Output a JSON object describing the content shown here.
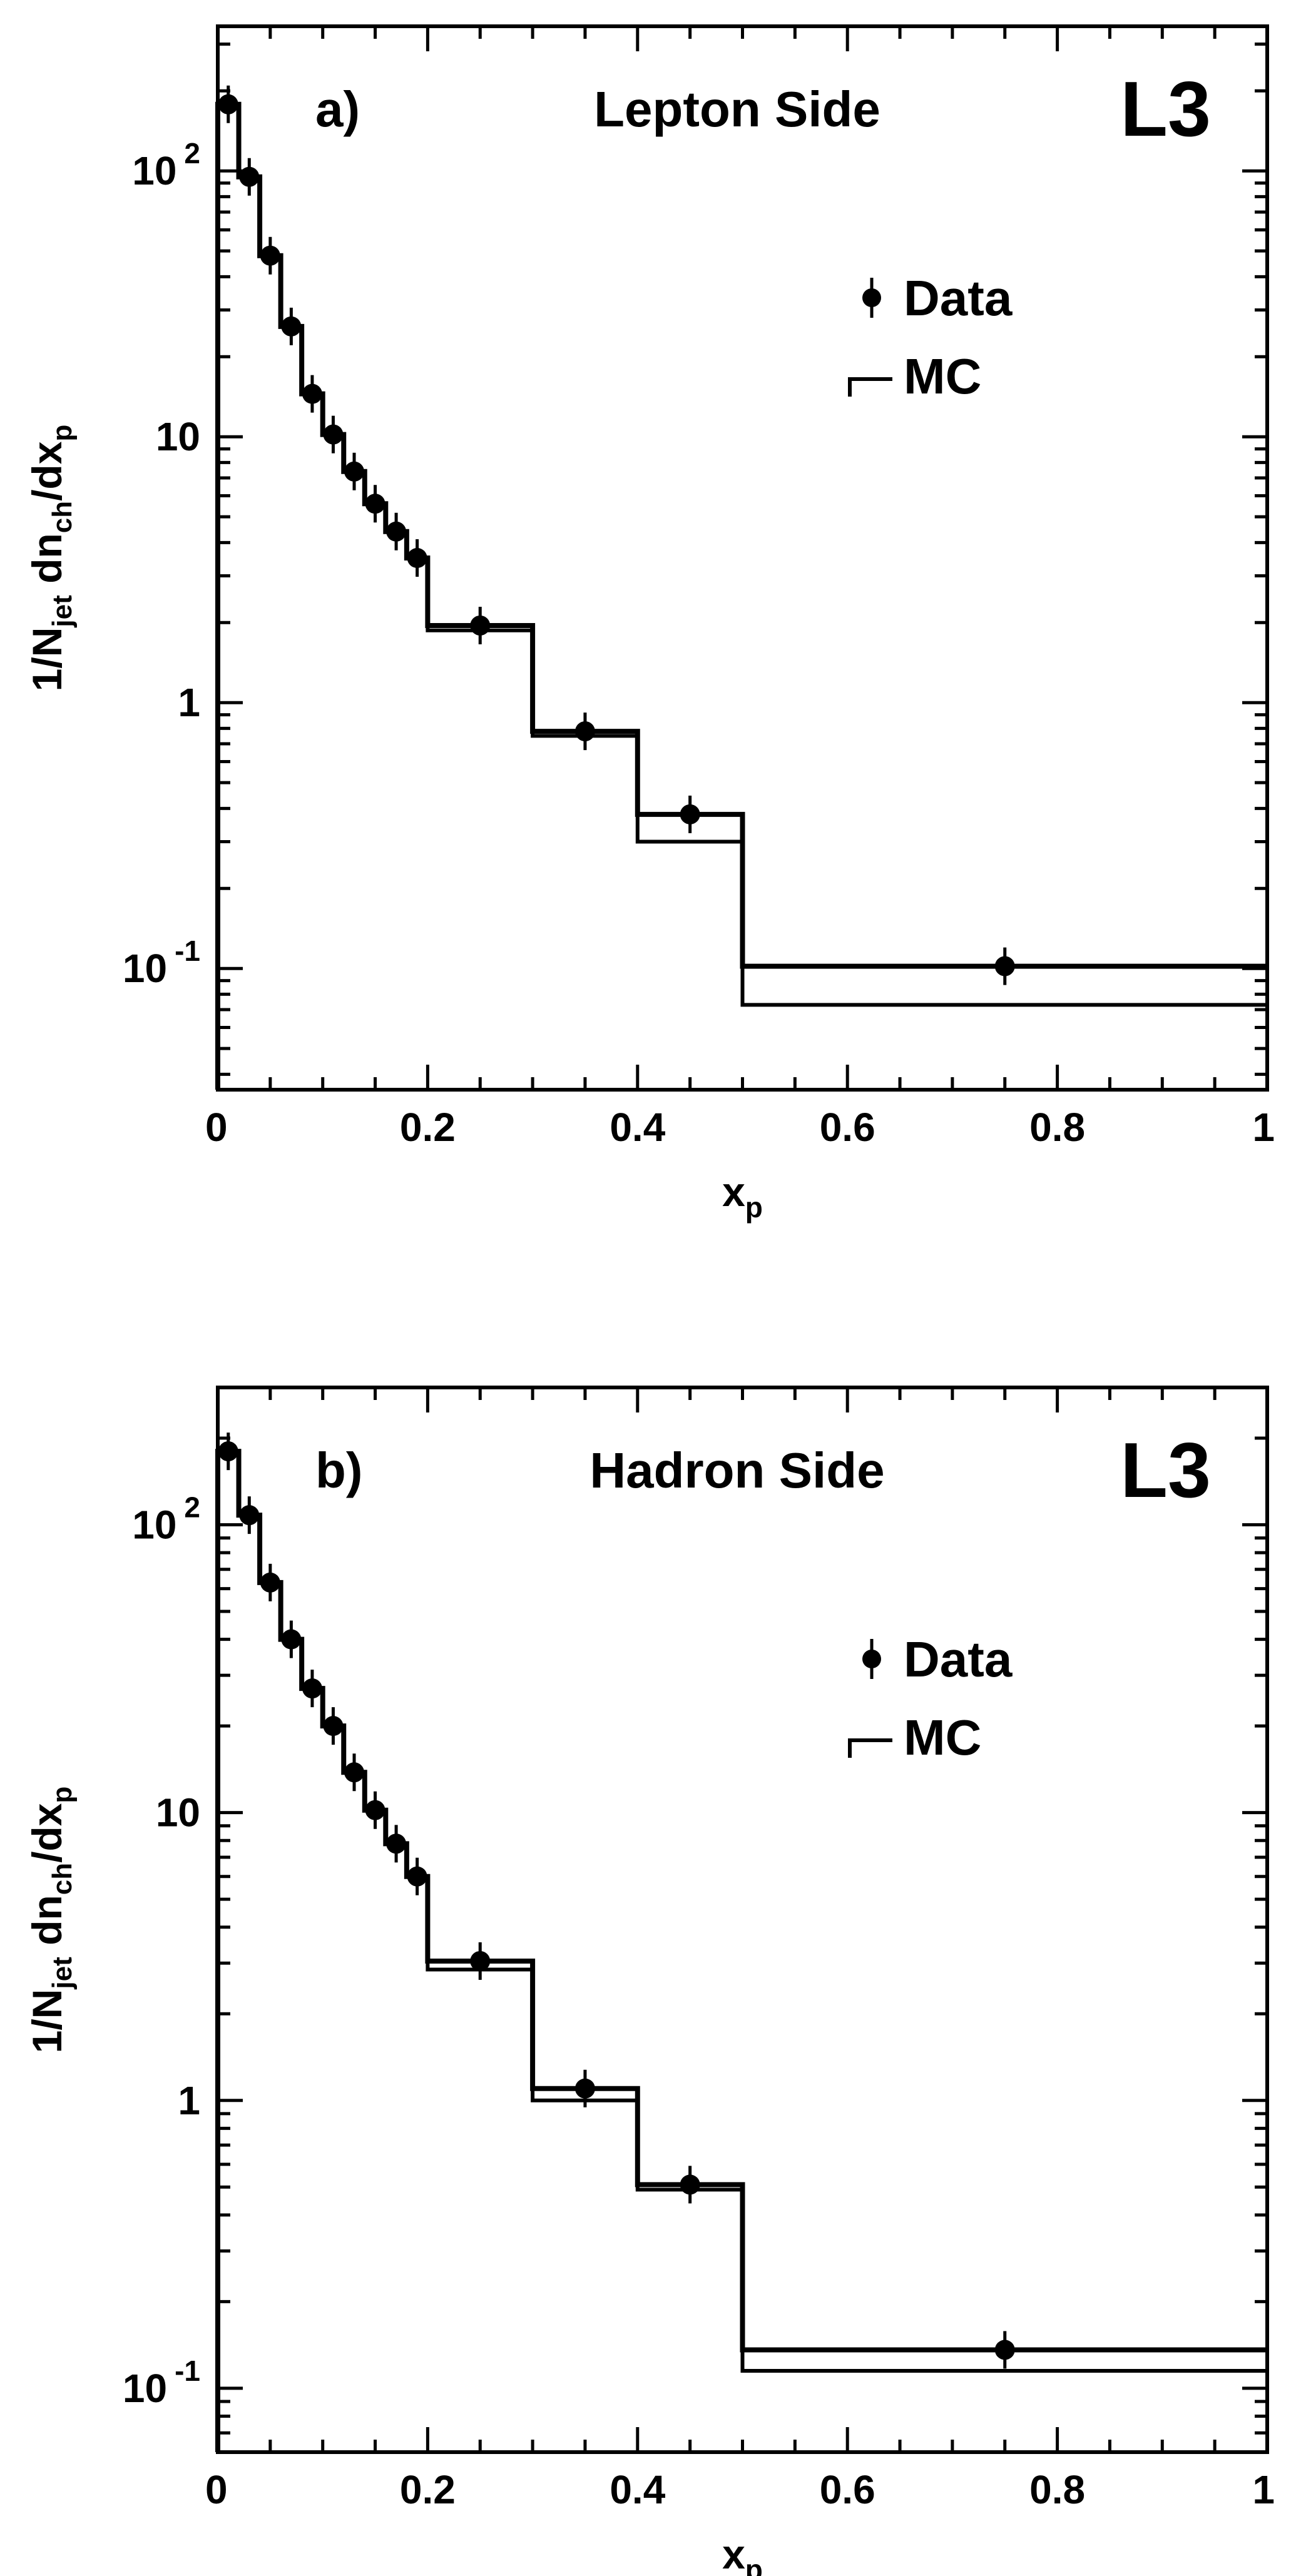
{
  "chart_data": [
    {
      "type": "line",
      "panel_label": "a)",
      "title": "Lepton Side",
      "experiment": "L3",
      "xlabel": "x",
      "xlabel_sub": "p",
      "ylabel_parts": [
        "1/N",
        "jet",
        " dn",
        "ch",
        "/dx",
        "p"
      ],
      "xlim": [
        0,
        1
      ],
      "ylim": [
        0.035,
        350
      ],
      "yscale": "log",
      "x_ticks": [
        0,
        0.2,
        0.4,
        0.6,
        0.8,
        1
      ],
      "x_tick_labels": [
        "0",
        "0.2",
        "0.4",
        "0.6",
        "0.8",
        "1"
      ],
      "y_ticks": [
        {
          "value": 100,
          "base": "10",
          "exp": "2"
        },
        {
          "value": 10,
          "base": "10",
          "exp": ""
        },
        {
          "value": 1,
          "base": "1",
          "exp": ""
        },
        {
          "value": 0.1,
          "base": "10",
          "exp": "-1"
        }
      ],
      "legend": {
        "position": "right",
        "data_label": "Data",
        "mc_label": "MC"
      },
      "bin_edges": [
        0,
        0.02,
        0.04,
        0.06,
        0.08,
        0.1,
        0.12,
        0.14,
        0.16,
        0.18,
        0.2,
        0.3,
        0.4,
        0.5,
        1.0
      ],
      "series": [
        {
          "name": "Data",
          "x": [
            0.01,
            0.03,
            0.05,
            0.07,
            0.09,
            0.11,
            0.13,
            0.15,
            0.17,
            0.19,
            0.25,
            0.35,
            0.45,
            0.75
          ],
          "values": [
            178,
            95,
            48,
            26,
            14.5,
            10.2,
            7.4,
            5.6,
            4.4,
            3.5,
            1.95,
            0.78,
            0.38,
            0.102
          ]
        },
        {
          "name": "MC",
          "values": [
            178,
            95,
            48,
            26,
            14.5,
            10.2,
            7.4,
            5.6,
            4.4,
            3.5,
            1.87,
            0.75,
            0.3,
            0.073
          ]
        }
      ]
    },
    {
      "type": "line",
      "panel_label": "b)",
      "title": "Hadron Side",
      "experiment": "L3",
      "xlabel": "x",
      "xlabel_sub": "p",
      "ylabel_parts": [
        "1/N",
        "jet",
        " dn",
        "ch",
        "/dx",
        "p"
      ],
      "xlim": [
        0,
        1
      ],
      "ylim": [
        0.06,
        300
      ],
      "yscale": "log",
      "x_ticks": [
        0,
        0.2,
        0.4,
        0.6,
        0.8,
        1
      ],
      "x_tick_labels": [
        "0",
        "0.2",
        "0.4",
        "0.6",
        "0.8",
        "1"
      ],
      "y_ticks": [
        {
          "value": 100,
          "base": "10",
          "exp": "2"
        },
        {
          "value": 10,
          "base": "10",
          "exp": ""
        },
        {
          "value": 1,
          "base": "1",
          "exp": ""
        },
        {
          "value": 0.1,
          "base": "10",
          "exp": "-1"
        }
      ],
      "legend": {
        "position": "right",
        "data_label": "Data",
        "mc_label": "MC"
      },
      "bin_edges": [
        0,
        0.02,
        0.04,
        0.06,
        0.08,
        0.1,
        0.12,
        0.14,
        0.16,
        0.18,
        0.2,
        0.3,
        0.4,
        0.5,
        1.0
      ],
      "series": [
        {
          "name": "Data",
          "x": [
            0.01,
            0.03,
            0.05,
            0.07,
            0.09,
            0.11,
            0.13,
            0.15,
            0.17,
            0.19,
            0.25,
            0.35,
            0.45,
            0.75
          ],
          "values": [
            180,
            108,
            63,
            40,
            27,
            20,
            13.8,
            10.2,
            7.8,
            6.0,
            3.05,
            1.1,
            0.51,
            0.136
          ]
        },
        {
          "name": "MC",
          "values": [
            180,
            108,
            63,
            40,
            27,
            20,
            13.8,
            10.2,
            7.8,
            6.0,
            2.85,
            1.0,
            0.49,
            0.115
          ]
        }
      ]
    }
  ]
}
